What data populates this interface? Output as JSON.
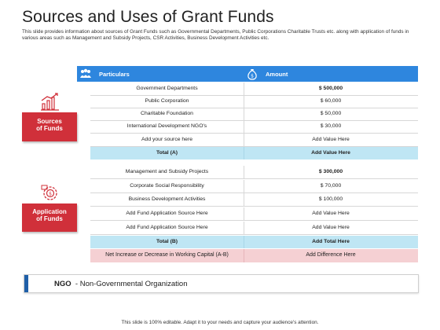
{
  "title": "Sources and Uses of Grant Funds",
  "subtitle": "This slide provides information about sources of Grant Funds such as Governmental Departments, Public Corporations Charitable Trusts etc. along with application of funds in various areas such as Management and Subsidy Projects, CSR Activities,  Business Development Activities etc.",
  "headers": {
    "particulars": "Particulars",
    "amount": "Amount"
  },
  "sections": {
    "sources": {
      "label_line1": "Sources",
      "label_line2": "of Funds",
      "rows": [
        {
          "item": "Government  Departments",
          "amount": "$ 500,000"
        },
        {
          "item": "Public Corporation",
          "amount": "$ 60,000"
        },
        {
          "item": "Charitable  Foundation",
          "amount": "$ 50,000"
        },
        {
          "item": "International  Development  NGO's",
          "amount": "$ 30,000"
        },
        {
          "item": "Add your source here",
          "amount": "Add Value Here"
        }
      ],
      "total": {
        "item": "Total (A)",
        "amount": "Add Value Here"
      }
    },
    "application": {
      "label_line1": "Application",
      "label_line2": "of Funds",
      "rows": [
        {
          "item": "Management  and Subsidy Projects",
          "amount": "$ 300,000"
        },
        {
          "item": "Corporate  Social Responsibility",
          "amount": "$ 70,000"
        },
        {
          "item": "Business Development  Activities",
          "amount": "$ 100,000"
        },
        {
          "item": "Add Fund Application Source Here",
          "amount": "Add Value Here"
        },
        {
          "item": "Add Fund Application Source Here",
          "amount": "Add Value Here"
        }
      ],
      "total": {
        "item": "Total (B)",
        "amount": "Add Total Here"
      }
    }
  },
  "net": {
    "item": "Net Increase or Decrease in Working Capital (A-B)",
    "amount": "Add Difference Here"
  },
  "ngo": {
    "abbr": "NGO",
    "sep": "-",
    "full": "Non-Governmental Organization"
  },
  "footer": "This slide is 100% editable. Adapt it to your needs and capture your audience's attention.",
  "colors": {
    "header_blue": "#2e86de",
    "label_red": "#d0303a",
    "total_blue": "#bfe6f4",
    "net_pink": "#f5d0d3",
    "ngo_bar": "#1f5fa8"
  },
  "icons": {
    "particulars": "people-icon",
    "amount": "money-bag-icon",
    "sources": "chart-growth-icon",
    "application": "gear-coin-icon"
  }
}
